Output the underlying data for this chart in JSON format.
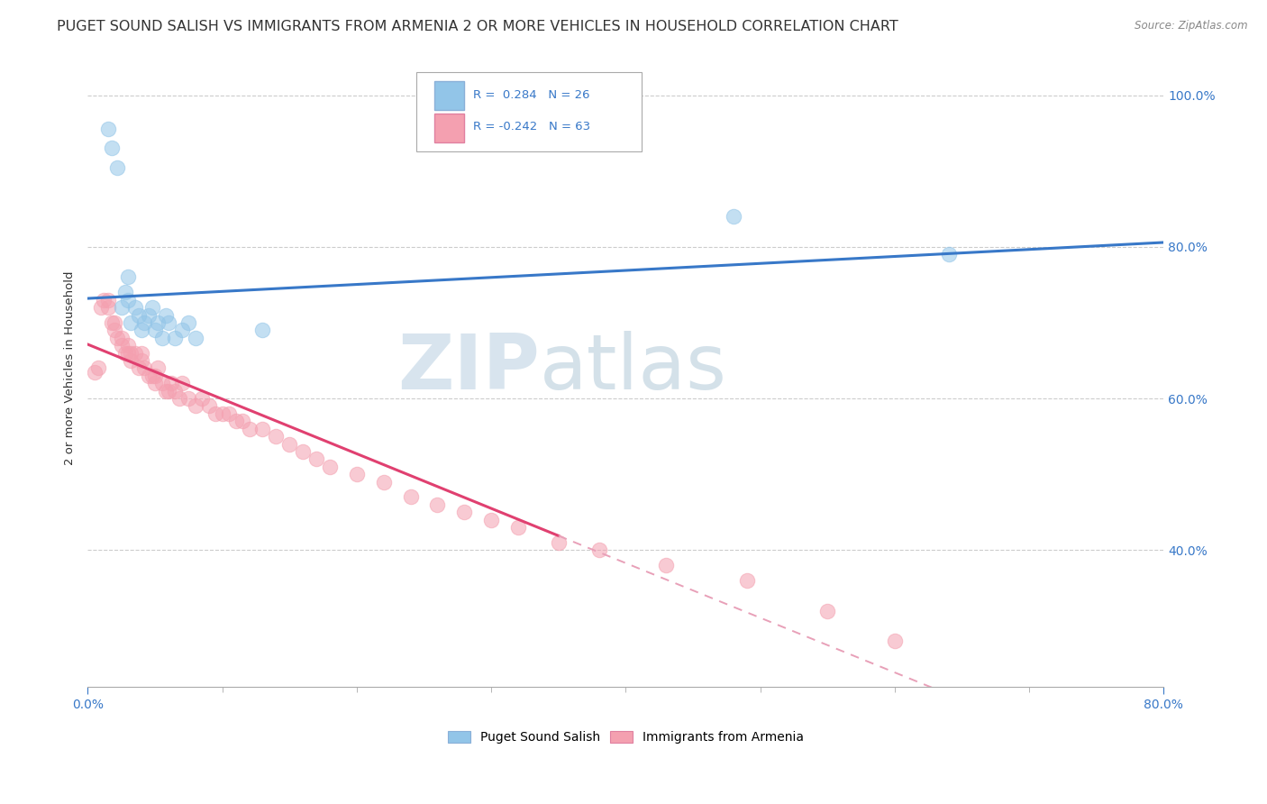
{
  "title": "PUGET SOUND SALISH VS IMMIGRANTS FROM ARMENIA 2 OR MORE VEHICLES IN HOUSEHOLD CORRELATION CHART",
  "source": "Source: ZipAtlas.com",
  "ylabel": "2 or more Vehicles in Household",
  "xlim": [
    0.0,
    0.8
  ],
  "ylim": [
    0.22,
    1.06
  ],
  "yticks": [
    0.4,
    0.6,
    0.8,
    1.0
  ],
  "ytick_labels": [
    "40.0%",
    "60.0%",
    "80.0%",
    "100.0%"
  ],
  "legend1_r": "0.284",
  "legend1_n": "26",
  "legend2_r": "-0.242",
  "legend2_n": "63",
  "legend1_color": "#92c5e8",
  "legend2_color": "#f4a0b0",
  "blue_line_color": "#3878c8",
  "pink_line_color": "#e04070",
  "pink_dash_color": "#e8a0b8",
  "legend_series1": "Puget Sound Salish",
  "legend_series2": "Immigrants from Armenia",
  "blue_x": [
    0.015,
    0.018,
    0.022,
    0.025,
    0.028,
    0.03,
    0.03,
    0.032,
    0.035,
    0.038,
    0.04,
    0.042,
    0.045,
    0.048,
    0.05,
    0.052,
    0.055,
    0.058,
    0.06,
    0.065,
    0.07,
    0.075,
    0.08,
    0.13,
    0.48,
    0.64
  ],
  "blue_y": [
    0.955,
    0.93,
    0.905,
    0.72,
    0.74,
    0.73,
    0.76,
    0.7,
    0.72,
    0.71,
    0.69,
    0.7,
    0.71,
    0.72,
    0.69,
    0.7,
    0.68,
    0.71,
    0.7,
    0.68,
    0.69,
    0.7,
    0.68,
    0.69,
    0.84,
    0.79
  ],
  "pink_x": [
    0.005,
    0.008,
    0.01,
    0.012,
    0.015,
    0.015,
    0.018,
    0.02,
    0.02,
    0.022,
    0.025,
    0.025,
    0.028,
    0.03,
    0.03,
    0.032,
    0.032,
    0.035,
    0.038,
    0.04,
    0.04,
    0.042,
    0.045,
    0.048,
    0.05,
    0.05,
    0.052,
    0.055,
    0.058,
    0.06,
    0.062,
    0.065,
    0.068,
    0.07,
    0.075,
    0.08,
    0.085,
    0.09,
    0.095,
    0.1,
    0.105,
    0.11,
    0.115,
    0.12,
    0.13,
    0.14,
    0.15,
    0.16,
    0.17,
    0.18,
    0.2,
    0.22,
    0.24,
    0.26,
    0.28,
    0.3,
    0.32,
    0.35,
    0.38,
    0.43,
    0.49,
    0.55,
    0.6
  ],
  "pink_y": [
    0.635,
    0.64,
    0.72,
    0.73,
    0.72,
    0.73,
    0.7,
    0.69,
    0.7,
    0.68,
    0.67,
    0.68,
    0.66,
    0.66,
    0.67,
    0.65,
    0.66,
    0.66,
    0.64,
    0.65,
    0.66,
    0.64,
    0.63,
    0.63,
    0.62,
    0.63,
    0.64,
    0.62,
    0.61,
    0.61,
    0.62,
    0.61,
    0.6,
    0.62,
    0.6,
    0.59,
    0.6,
    0.59,
    0.58,
    0.58,
    0.58,
    0.57,
    0.57,
    0.56,
    0.56,
    0.55,
    0.54,
    0.53,
    0.52,
    0.51,
    0.5,
    0.49,
    0.47,
    0.46,
    0.45,
    0.44,
    0.43,
    0.41,
    0.4,
    0.38,
    0.36,
    0.32,
    0.28
  ],
  "watermark_zip": "ZIP",
  "watermark_atlas": "atlas",
  "background_color": "#ffffff",
  "grid_color": "#cccccc",
  "title_fontsize": 11.5,
  "axis_label_fontsize": 9.5
}
